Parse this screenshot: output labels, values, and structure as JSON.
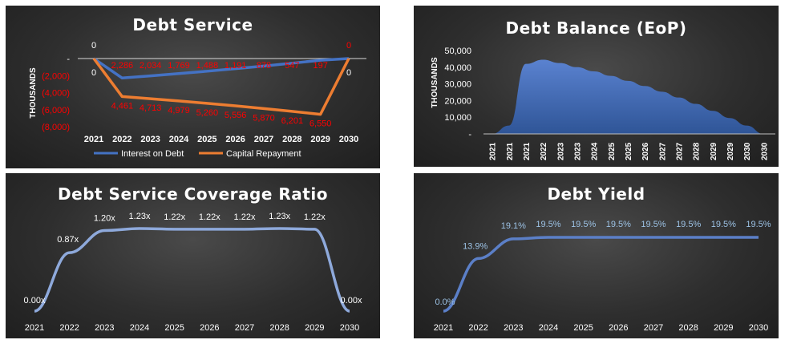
{
  "panels": {
    "debt_service": {
      "title": "Debt Service"
    },
    "debt_balance": {
      "title": "Debt Balance (EoP)"
    },
    "dscr": {
      "title": "Debt Service Coverage Ratio"
    },
    "debt_yield": {
      "title": "Debt Yield"
    }
  },
  "colors": {
    "interest": "#4472c4",
    "repayment": "#ed7d31",
    "label_red": "#ff0000",
    "line_blue": "#8ea9db",
    "area_blue": "#4472c4",
    "yield_line": "#5b7fc7",
    "yield_label": "#9dc3e6"
  },
  "chart_data": [
    {
      "type": "line",
      "title": "Debt Service",
      "ylabel": "THOUSANDS",
      "categories": [
        "2021",
        "2022",
        "2023",
        "2024",
        "2025",
        "2026",
        "2027",
        "2028",
        "2029",
        "2030"
      ],
      "ylim": [
        -8000,
        0
      ],
      "yticks": [
        "-",
        "(2,000)",
        "(4,000)",
        "(6,000)",
        "(8,000)"
      ],
      "series": [
        {
          "name": "Interest on Debt",
          "values": [
            0,
            -2286,
            -2034,
            -1769,
            -1488,
            -1191,
            -878,
            -547,
            -197,
            0
          ],
          "labels": [
            "0",
            "2,286",
            "2,034",
            "1,769",
            "1,488",
            "1,191",
            "878",
            "547",
            "197",
            "0"
          ]
        },
        {
          "name": "Capital Repayment",
          "values": [
            0,
            -4461,
            -4713,
            -4979,
            -5260,
            -5556,
            -5870,
            -6201,
            -6550,
            0
          ],
          "labels": [
            "0",
            "4,461",
            "4,713",
            "4,979",
            "5,260",
            "5,556",
            "5,870",
            "6,201",
            "6,550",
            "0"
          ]
        }
      ],
      "legend": "bottom"
    },
    {
      "type": "area",
      "title": "Debt Balance (EoP)",
      "ylabel": "THOUSANDS",
      "categories": [
        "2021",
        "2021",
        "2021",
        "2022",
        "2023",
        "2023",
        "2024",
        "2025",
        "2025",
        "2026",
        "2027",
        "2027",
        "2028",
        "2029",
        "2029",
        "2030",
        "2030"
      ],
      "values": [
        0,
        5000,
        42000,
        44500,
        42500,
        40000,
        37500,
        34800,
        31800,
        28700,
        25300,
        21800,
        18000,
        13800,
        9500,
        5000,
        0
      ],
      "ylim": [
        0,
        50000
      ],
      "yticks": [
        "-",
        "10,000",
        "20,000",
        "30,000",
        "40,000",
        "50,000"
      ]
    },
    {
      "type": "line",
      "title": "Debt Service Coverage Ratio",
      "categories": [
        "2021",
        "2022",
        "2023",
        "2024",
        "2025",
        "2026",
        "2027",
        "2028",
        "2029",
        "2030"
      ],
      "values": [
        0.0,
        0.87,
        1.2,
        1.23,
        1.22,
        1.22,
        1.22,
        1.23,
        1.22,
        0.0
      ],
      "labels": [
        "0.00x",
        "0.87x",
        "1.20x",
        "1.23x",
        "1.22x",
        "1.22x",
        "1.22x",
        "1.23x",
        "1.22x",
        "0.00x"
      ]
    },
    {
      "type": "line",
      "title": "Debt Yield",
      "categories": [
        "2021",
        "2022",
        "2023",
        "2024",
        "2025",
        "2026",
        "2027",
        "2028",
        "2029",
        "2030"
      ],
      "values": [
        0.0,
        13.9,
        19.1,
        19.5,
        19.5,
        19.5,
        19.5,
        19.5,
        19.5,
        19.5
      ],
      "labels": [
        "0.0%",
        "13.9%",
        "19.1%",
        "19.5%",
        "19.5%",
        "19.5%",
        "19.5%",
        "19.5%",
        "19.5%",
        "19.5%"
      ]
    }
  ]
}
